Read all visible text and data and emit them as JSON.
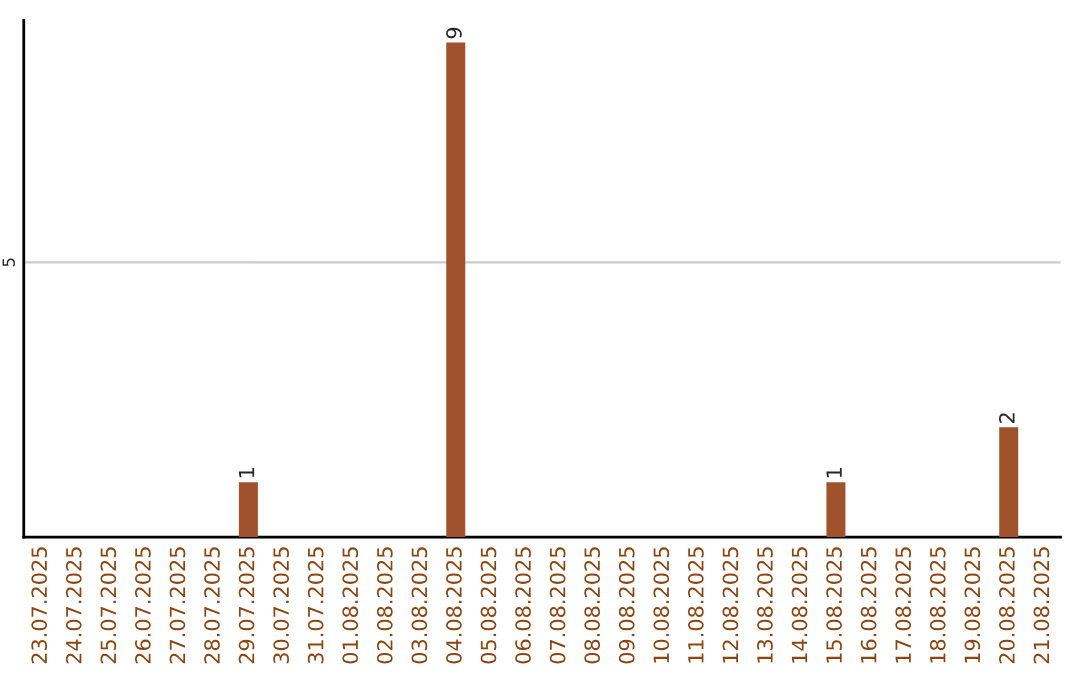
{
  "chart_data": {
    "type": "bar",
    "categories": [
      "23.07.2025",
      "24.07.2025",
      "25.07.2025",
      "26.07.2025",
      "27.07.2025",
      "28.07.2025",
      "29.07.2025",
      "30.07.2025",
      "31.07.2025",
      "01.08.2025",
      "02.08.2025",
      "03.08.2025",
      "04.08.2025",
      "05.08.2025",
      "06.08.2025",
      "07.08.2025",
      "08.08.2025",
      "09.08.2025",
      "10.08.2025",
      "11.08.2025",
      "12.08.2025",
      "13.08.2025",
      "14.08.2025",
      "15.08.2025",
      "16.08.2025",
      "17.08.2025",
      "18.08.2025",
      "19.08.2025",
      "20.08.2025",
      "21.08.2025"
    ],
    "values": [
      0,
      0,
      0,
      0,
      0,
      0,
      1,
      0,
      0,
      0,
      0,
      0,
      9,
      0,
      0,
      0,
      0,
      0,
      0,
      0,
      0,
      0,
      0,
      1,
      0,
      0,
      0,
      0,
      2,
      0
    ],
    "value_labels": [
      null,
      null,
      null,
      null,
      null,
      null,
      "1",
      null,
      null,
      null,
      null,
      null,
      "9",
      null,
      null,
      null,
      null,
      null,
      null,
      null,
      null,
      null,
      null,
      "1",
      null,
      null,
      null,
      null,
      "2",
      null
    ],
    "color": "#a0522d",
    "ylim": [
      0,
      9.4
    ],
    "yticks": [
      5
    ],
    "grid": "y"
  }
}
